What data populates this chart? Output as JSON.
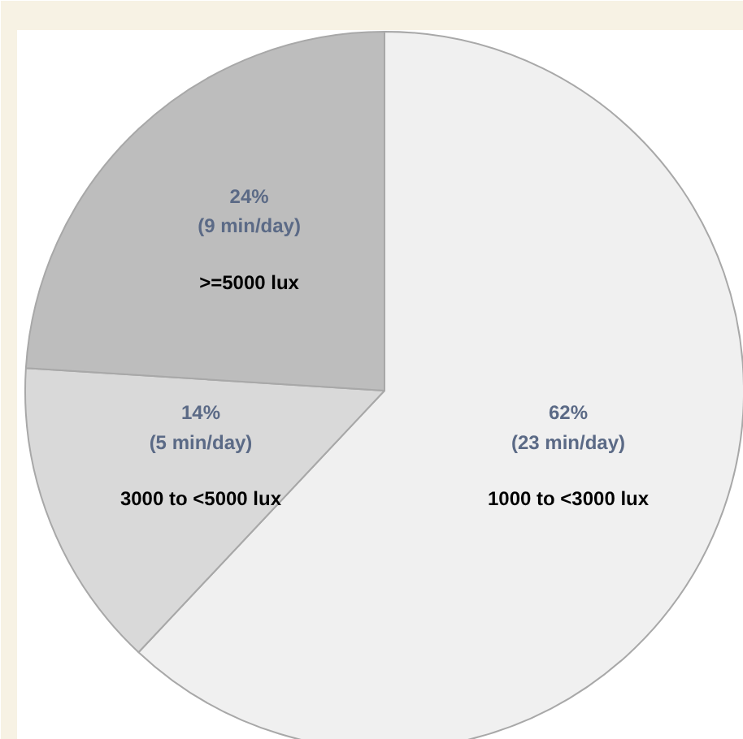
{
  "chart_data": {
    "type": "pie",
    "categories": [
      "1000 to <3000 lux",
      "3000 to <5000 lux",
      ">=5000 lux"
    ],
    "values": [
      62,
      14,
      24
    ],
    "colors": [
      "#f0f0f0",
      "#d9d9d9",
      "#bdbdbd"
    ],
    "value_labels": [
      "62%\n(23 min/day)",
      "14%\n(5 min/day)",
      "24%\n(9 min/day)"
    ]
  }
}
